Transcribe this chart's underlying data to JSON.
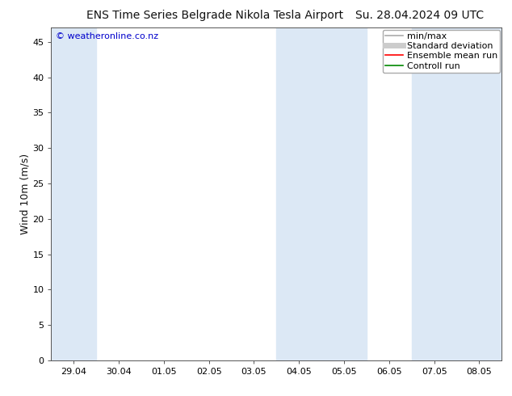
{
  "title": "ENS Time Series Belgrade Nikola Tesla Airport",
  "title_right": "Su. 28.04.2024 09 UTC",
  "ylabel": "Wind 10m (m/s)",
  "watermark": "© weatheronline.co.nz",
  "watermark_color": "#0000cc",
  "ylim": [
    0,
    47
  ],
  "yticks": [
    0,
    5,
    10,
    15,
    20,
    25,
    30,
    35,
    40,
    45
  ],
  "xtick_labels": [
    "29.04",
    "30.04",
    "01.05",
    "02.05",
    "03.05",
    "04.05",
    "05.05",
    "06.05",
    "07.05",
    "08.05"
  ],
  "background_color": "#ffffff",
  "plot_bg_color": "#ffffff",
  "shade_color": "#dce8f5",
  "legend_entries": [
    {
      "label": "min/max",
      "color": "#aaaaaa",
      "lw": 1.2,
      "style": "solid"
    },
    {
      "label": "Standard deviation",
      "color": "#cccccc",
      "lw": 5,
      "style": "solid"
    },
    {
      "label": "Ensemble mean run",
      "color": "#ff0000",
      "lw": 1.2,
      "style": "solid"
    },
    {
      "label": "Controll run",
      "color": "#008800",
      "lw": 1.2,
      "style": "solid"
    }
  ],
  "title_fontsize": 10,
  "axis_fontsize": 9,
  "tick_fontsize": 8,
  "legend_fontsize": 8
}
